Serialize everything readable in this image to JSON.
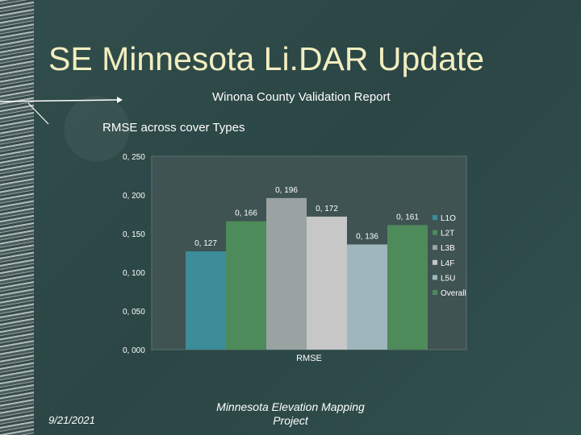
{
  "slide": {
    "title": "SE Minnesota Li.DAR Update",
    "subtitle": "Winona County Validation Report",
    "chart_label": "RMSE across cover Types",
    "footer_date": "9/21/2021",
    "footer_center": "Minnesota Elevation Mapping Project"
  },
  "chart_data": {
    "type": "bar",
    "categories": [
      "RMSE"
    ],
    "series": [
      {
        "name": "L1O",
        "values": [
          0.127
        ],
        "label": "0, 127",
        "color": "#3d8c9a"
      },
      {
        "name": "L2T",
        "values": [
          0.166
        ],
        "label": "0, 166",
        "color": "#4e8b5a"
      },
      {
        "name": "L3B",
        "values": [
          0.196
        ],
        "label": "0, 196",
        "color": "#9aa3a2"
      },
      {
        "name": "L4F",
        "values": [
          0.172
        ],
        "label": "0, 172",
        "color": "#c7c7c7"
      },
      {
        "name": "L5U",
        "values": [
          0.136
        ],
        "label": "0, 136",
        "color": "#9fb6bd"
      },
      {
        "name": "Overall",
        "values": [
          0.161
        ],
        "label": "0, 161",
        "color": "#4e8b5a"
      }
    ],
    "ylim": [
      0,
      0.25
    ],
    "yticks": [
      "0, 000",
      "0, 050",
      "0, 100",
      "0, 150",
      "0, 200",
      "0, 250"
    ],
    "xlabel": "RMSE",
    "grid": false,
    "legend_position": "right"
  }
}
